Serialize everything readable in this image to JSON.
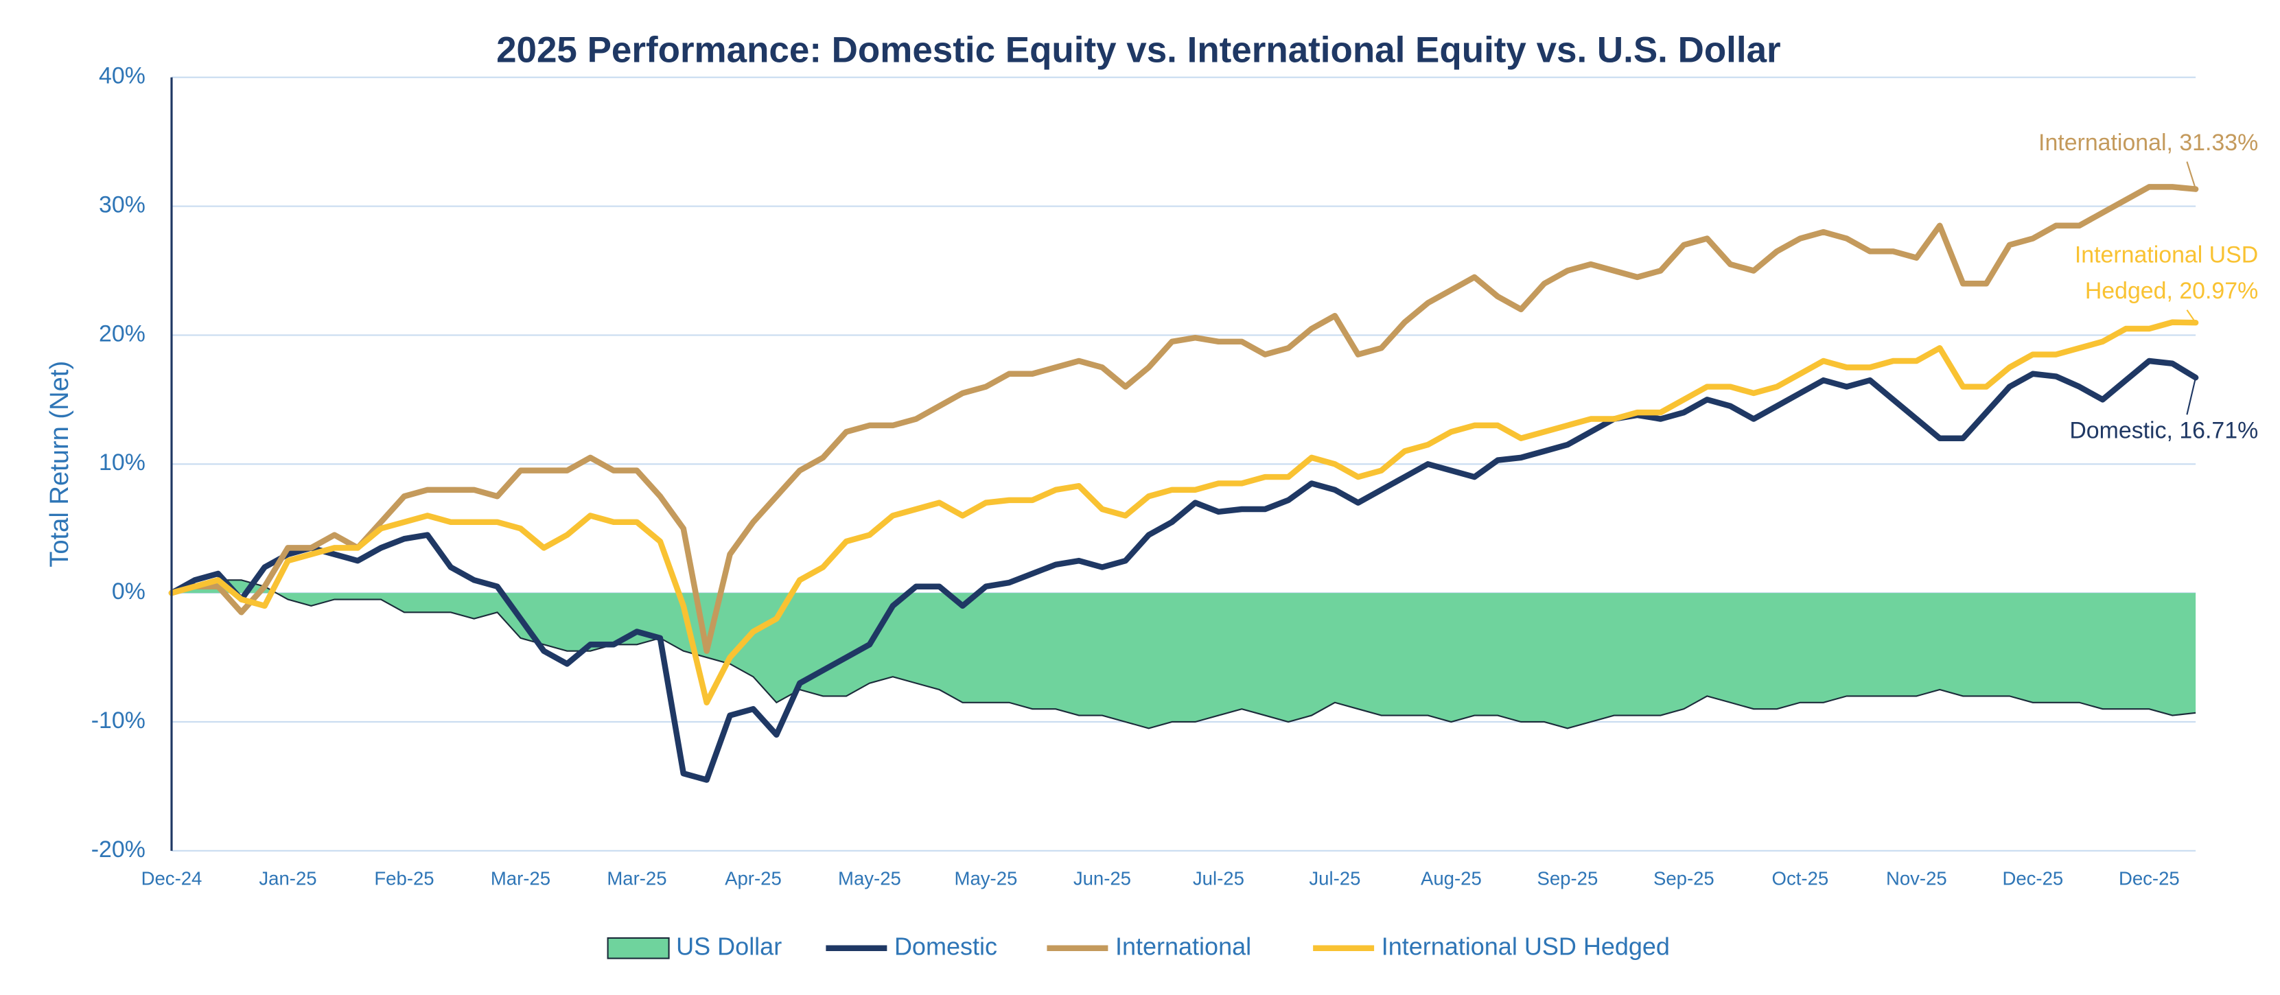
{
  "chart_data": {
    "type": "line",
    "title": "2025 Performance: Domestic Equity vs. International Equity vs. U.S. Dollar",
    "y_label": "Total Return (Net)",
    "categories": [
      "Dec-24",
      null,
      null,
      null,
      null,
      "Jan-25",
      null,
      null,
      null,
      null,
      "Feb-25",
      null,
      null,
      null,
      null,
      "Mar-25",
      null,
      null,
      null,
      null,
      "Mar-25",
      null,
      null,
      null,
      null,
      "Apr-25",
      null,
      null,
      null,
      null,
      "May-25",
      null,
      null,
      null,
      null,
      "May-25",
      null,
      null,
      null,
      null,
      "Jun-25",
      null,
      null,
      null,
      null,
      "Jul-25",
      null,
      null,
      null,
      null,
      "Jul-25",
      null,
      null,
      null,
      null,
      "Aug-25",
      null,
      null,
      null,
      null,
      "Sep-25",
      null,
      null,
      null,
      null,
      "Sep-25",
      null,
      null,
      null,
      null,
      "Oct-25",
      null,
      null,
      null,
      null,
      "Nov-25",
      null,
      null,
      null,
      null,
      "Dec-25",
      null,
      null,
      null,
      null,
      "Dec-25",
      null,
      null
    ],
    "ylim": [
      -20,
      40
    ],
    "yticks": [
      {
        "value": -20,
        "label": "-20%"
      },
      {
        "value": -10,
        "label": "-10%"
      },
      {
        "value": 0,
        "label": "0%"
      },
      {
        "value": 10,
        "label": "10%"
      },
      {
        "value": 20,
        "label": "20%"
      },
      {
        "value": 30,
        "label": "30%"
      },
      {
        "value": 40,
        "label": "40%"
      }
    ],
    "grid": true,
    "legend": "bottom",
    "series": [
      {
        "name": "US Dollar",
        "color": "#6fd39d",
        "area": true,
        "values": [
          0,
          0.5,
          1.0,
          1.0,
          0.5,
          -0.5,
          -1.0,
          -0.5,
          -0.5,
          -0.5,
          -1.5,
          -1.5,
          -1.5,
          -2.0,
          -1.5,
          -3.5,
          -4.0,
          -4.5,
          -4.5,
          -4.0,
          -4.0,
          -3.5,
          -4.5,
          -5.0,
          -5.5,
          -6.5,
          -8.5,
          -7.5,
          -8.0,
          -8.0,
          -7.0,
          -6.5,
          -7.0,
          -7.5,
          -8.5,
          -8.5,
          -8.5,
          -9.0,
          -9.0,
          -9.5,
          -9.5,
          -10.0,
          -10.5,
          -10.0,
          -10.0,
          -9.5,
          -9.0,
          -9.5,
          -10.0,
          -9.5,
          -8.5,
          -9.0,
          -9.5,
          -9.5,
          -9.5,
          -10.0,
          -9.5,
          -9.5,
          -10.0,
          -10.0,
          -10.5,
          -10.0,
          -9.5,
          -9.5,
          -9.5,
          -9.0,
          -8.0,
          -8.5,
          -9.0,
          -9.0,
          -8.5,
          -8.5,
          -8.0,
          -8.0,
          -8.0,
          -8.0,
          -7.5,
          -8.0,
          -8.0,
          -8.0,
          -8.5,
          -8.5,
          -8.5,
          -9.0,
          -9.0,
          -9.0,
          -9.5,
          -9.3
        ]
      },
      {
        "name": "Domestic",
        "color": "#1f3864",
        "values": [
          0,
          1.0,
          1.5,
          -0.5,
          2.0,
          3.0,
          3.5,
          3.0,
          2.5,
          3.5,
          4.2,
          4.5,
          2.0,
          1.0,
          0.5,
          -2.0,
          -4.5,
          -5.5,
          -4.0,
          -4.0,
          -3.0,
          -3.5,
          -14.0,
          -14.5,
          -9.5,
          -9.0,
          -11.0,
          -7.0,
          -6.0,
          -5.0,
          -4.0,
          -1.0,
          0.5,
          0.5,
          -1.0,
          0.5,
          0.8,
          1.5,
          2.2,
          2.5,
          2.0,
          2.5,
          4.5,
          5.5,
          7.0,
          6.3,
          6.5,
          6.5,
          7.2,
          8.5,
          8.0,
          7.0,
          8.0,
          9.0,
          10.0,
          9.5,
          9.0,
          10.3,
          10.5,
          11.0,
          11.5,
          12.5,
          13.5,
          13.8,
          13.5,
          14.0,
          15.0,
          14.5,
          13.5,
          14.5,
          15.5,
          16.5,
          16.0,
          16.5,
          15.0,
          13.5,
          12.0,
          12.0,
          14.0,
          16.0,
          17.0,
          16.8,
          16.0,
          15.0,
          16.5,
          18.0,
          17.8,
          16.71
        ]
      },
      {
        "name": "International",
        "color": "#c49a5c",
        "values": [
          0,
          0.5,
          0.5,
          -1.5,
          0.5,
          3.5,
          3.5,
          4.5,
          3.5,
          5.5,
          7.5,
          8.0,
          8.0,
          8.0,
          7.5,
          9.5,
          9.5,
          9.5,
          10.5,
          9.5,
          9.5,
          7.5,
          5.0,
          -4.5,
          3.0,
          5.5,
          7.5,
          9.5,
          10.5,
          12.5,
          13.0,
          13.0,
          13.5,
          14.5,
          15.5,
          16.0,
          17.0,
          17.0,
          17.5,
          18.0,
          17.5,
          16.0,
          17.5,
          19.5,
          19.8,
          19.5,
          19.5,
          18.5,
          19.0,
          20.5,
          21.5,
          18.5,
          19.0,
          21.0,
          22.5,
          23.5,
          24.5,
          23.0,
          22.0,
          24.0,
          25.0,
          25.5,
          25.0,
          24.5,
          25.0,
          27.0,
          27.5,
          25.5,
          25.0,
          26.5,
          27.5,
          28.0,
          27.5,
          26.5,
          26.5,
          26.0,
          28.5,
          24.0,
          24.0,
          27.0,
          27.5,
          28.5,
          28.5,
          29.5,
          30.5,
          31.5,
          31.5,
          31.33
        ]
      },
      {
        "name": "International USD Hedged",
        "color": "#f9c232",
        "values": [
          0,
          0.5,
          1.0,
          -0.5,
          -1.0,
          2.5,
          3.0,
          3.5,
          3.5,
          5.0,
          5.5,
          6.0,
          5.5,
          5.5,
          5.5,
          5.0,
          3.5,
          4.5,
          6.0,
          5.5,
          5.5,
          4.0,
          -1.0,
          -8.5,
          -5.0,
          -3.0,
          -2.0,
          1.0,
          2.0,
          4.0,
          4.5,
          6.0,
          6.5,
          7.0,
          6.0,
          7.0,
          7.2,
          7.2,
          8.0,
          8.3,
          6.5,
          6.0,
          7.5,
          8.0,
          8.0,
          8.5,
          8.5,
          9.0,
          9.0,
          10.5,
          10.0,
          9.0,
          9.5,
          11.0,
          11.5,
          12.5,
          13.0,
          13.0,
          12.0,
          12.5,
          13.0,
          13.5,
          13.5,
          14.0,
          14.0,
          15.0,
          16.0,
          16.0,
          15.5,
          16.0,
          17.0,
          18.0,
          17.5,
          17.5,
          18.0,
          18.0,
          19.0,
          16.0,
          16.0,
          17.5,
          18.5,
          18.5,
          19.0,
          19.5,
          20.5,
          20.5,
          21.0,
          20.97
        ]
      }
    ],
    "annotations": [
      {
        "series": 2,
        "lines": [
          "International, 31.33%"
        ]
      },
      {
        "series": 3,
        "lines": [
          "International USD",
          "Hedged, 20.97%"
        ]
      },
      {
        "series": 1,
        "lines": [
          "Domestic, 16.71%"
        ]
      }
    ]
  }
}
